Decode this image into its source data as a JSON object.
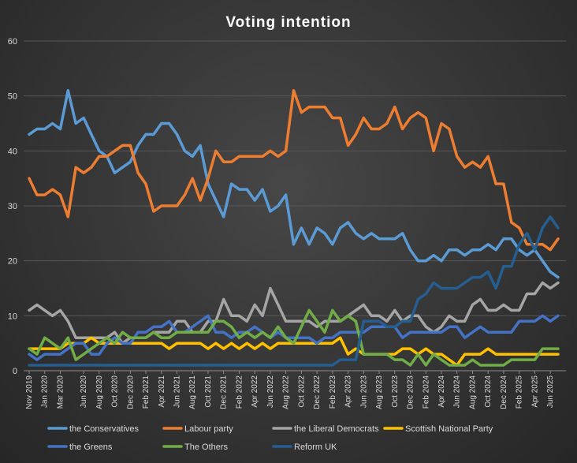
{
  "chart_data": {
    "type": "line",
    "title": "Voting  intention",
    "xlabel": "",
    "ylabel": "",
    "ylim": [
      0,
      60
    ],
    "yticks": [
      0,
      10,
      20,
      30,
      40,
      50,
      60
    ],
    "grid": true,
    "legend_position": "bottom",
    "x": [
      "Nov 2019",
      "Dec 2019",
      "Jan 2020",
      "Feb 2020",
      "Mar 2020",
      "Apr 2020",
      "May 2020",
      "Jun 2020",
      "Jul 2020",
      "Aug 2020",
      "Sep 2020",
      "Oct 2020",
      "Nov 2020",
      "Dec 2020",
      "Jan 2021",
      "Feb 2021",
      "Mar 2021",
      "Apr 2021",
      "May 2021",
      "Jun 2021",
      "Jul 2021",
      "Aug 2021",
      "Sep 2021",
      "Oct 2021",
      "Nov 2021",
      "Dec 2021",
      "Jan 2022",
      "Feb 2022",
      "Mar 2022",
      "Apr 2022",
      "May 2022",
      "Jun 2022",
      "Jul 2022",
      "Aug 2022",
      "Sep 2022",
      "Oct 2022",
      "Nov 2022",
      "Dec 2022",
      "Jan 2023",
      "Feb 2023",
      "Mar 2023",
      "Apr 2023",
      "May 2023",
      "Jun 2023",
      "Jul 2023",
      "Aug 2023",
      "Sep 2023",
      "Oct 2023",
      "Nov 2023",
      "Dec 2023",
      "Jan 2024",
      "Feb 2024",
      "Mar 2024",
      "Apr 2024",
      "May 2024",
      "Jun 2024",
      "Jul 2024",
      "Aug 2024",
      "Sep 2024",
      "Oct 2024",
      "Nov 2024",
      "Dec 2024",
      "Jan 2025",
      "Feb 2025",
      "Mar 2025",
      "Apr 2025",
      "May 2025",
      "Jun 2025",
      "Jul 2025"
    ],
    "xtick_labels": [
      "Nov 2019",
      "Jan 2020",
      "Mar 2020",
      "Jun 2020",
      "Aug 2020",
      "Oct 2020",
      "Dec 2020",
      "Feb 2021",
      "Apr 2021",
      "Jun 2021",
      "Aug 2021",
      "Oct 2021",
      "Dec 2021",
      "Feb 2022",
      "Apr 2022",
      "Jun 2022",
      "Aug 2022",
      "Oct 2022",
      "Dec 2022",
      "Feb 2023",
      "Apr 2023",
      "Jun 2023",
      "Aug 2023",
      "Oct 2023",
      "Dec 2023",
      "Feb 2024",
      "Apr 2024",
      "Jun 2024",
      "Aug 2024",
      "Oct 2024",
      "Dec 2024",
      "Feb 2025",
      "Apr 2025",
      "Jun 2025"
    ],
    "series": [
      {
        "name": "the Conservatives",
        "color": "#5b9bd5",
        "values": [
          43,
          44,
          44,
          45,
          44,
          51,
          45,
          46,
          43,
          40,
          39,
          36,
          37,
          38,
          41,
          43,
          43,
          45,
          45,
          43,
          40,
          39,
          41,
          34,
          31,
          28,
          34,
          33,
          33,
          31,
          33,
          29,
          30,
          32,
          23,
          26,
          23,
          26,
          25,
          23,
          26,
          27,
          25,
          24,
          25,
          24,
          24,
          24,
          25,
          22,
          20,
          20,
          21,
          20,
          22,
          22,
          21,
          22,
          22,
          23,
          22,
          24,
          24,
          22,
          21,
          22,
          20,
          18,
          17
        ]
      },
      {
        "name": "Labour party",
        "color": "#ed7d31",
        "values": [
          35,
          32,
          32,
          33,
          32,
          28,
          37,
          36,
          37,
          39,
          39,
          40,
          41,
          41,
          36,
          34,
          29,
          30,
          30,
          30,
          32,
          35,
          31,
          35,
          40,
          38,
          38,
          39,
          39,
          39,
          39,
          40,
          39,
          40,
          51,
          47,
          48,
          48,
          48,
          46,
          46,
          41,
          43,
          46,
          44,
          44,
          45,
          48,
          44,
          46,
          47,
          46,
          40,
          45,
          44,
          39,
          37,
          38,
          37,
          39,
          34,
          34,
          27,
          26,
          23,
          23,
          23,
          22,
          24
        ]
      },
      {
        "name": "the Liberal Democrats",
        "color": "#a5a5a5",
        "values": [
          11,
          12,
          11,
          10,
          11,
          9,
          6,
          6,
          6,
          6,
          6,
          7,
          5,
          6,
          6,
          6,
          7,
          7,
          7,
          9,
          9,
          7,
          7,
          9,
          9,
          13,
          10,
          10,
          9,
          12,
          10,
          15,
          12,
          9,
          9,
          9,
          9,
          8,
          9,
          9,
          9,
          10,
          11,
          12,
          10,
          10,
          9,
          11,
          9,
          10,
          10,
          8,
          7,
          8,
          10,
          9,
          9,
          12,
          13,
          11,
          11,
          12,
          11,
          11,
          14,
          14,
          16,
          15,
          16
        ]
      },
      {
        "name": "Scottish National Party",
        "color": "#ffc000",
        "values": [
          4,
          4,
          4,
          4,
          4,
          5,
          5,
          5,
          6,
          5,
          5,
          5,
          5,
          5,
          5,
          5,
          5,
          5,
          4,
          5,
          5,
          5,
          5,
          4,
          5,
          4,
          5,
          4,
          5,
          4,
          5,
          4,
          5,
          5,
          5,
          5,
          5,
          5,
          5,
          5,
          6,
          3,
          4,
          3,
          3,
          3,
          3,
          3,
          4,
          4,
          3,
          4,
          3,
          3,
          2,
          1,
          3,
          3,
          3,
          4,
          3,
          3,
          3,
          3,
          3,
          3,
          3,
          3,
          3
        ]
      },
      {
        "name": "the Greens",
        "color": "#4472c4",
        "values": [
          3,
          2,
          3,
          3,
          3,
          4,
          5,
          5,
          3,
          3,
          5,
          6,
          5,
          5,
          7,
          7,
          8,
          8,
          9,
          7,
          7,
          8,
          9,
          10,
          7,
          7,
          6,
          7,
          7,
          8,
          7,
          6,
          7,
          6,
          6,
          6,
          6,
          5,
          6,
          6,
          7,
          7,
          7,
          7,
          8,
          8,
          8,
          8,
          6,
          7,
          7,
          7,
          7,
          7,
          8,
          8,
          6,
          7,
          8,
          7,
          7,
          7,
          7,
          9,
          9,
          9,
          10,
          9,
          10
        ]
      },
      {
        "name": "The Others",
        "color": "#70ad47",
        "values": [
          4,
          3,
          6,
          5,
          4,
          6,
          2,
          3,
          4,
          5,
          6,
          5,
          7,
          6,
          6,
          6,
          7,
          6,
          6,
          7,
          7,
          7,
          7,
          7,
          9,
          9,
          8,
          6,
          7,
          6,
          7,
          6,
          8,
          6,
          5,
          8,
          11,
          9,
          7,
          11,
          9,
          10,
          9,
          3,
          3,
          3,
          3,
          2,
          2,
          1,
          3,
          1,
          3,
          2,
          1,
          1,
          1,
          2,
          1,
          1,
          1,
          1,
          2,
          2,
          2,
          2,
          4,
          4,
          4
        ]
      },
      {
        "name": "Reform UK",
        "color": "#255e91",
        "values": [
          1,
          1,
          1,
          1,
          1,
          1,
          1,
          1,
          1,
          1,
          1,
          1,
          1,
          1,
          1,
          1,
          1,
          1,
          1,
          1,
          1,
          1,
          1,
          1,
          1,
          1,
          1,
          1,
          1,
          1,
          1,
          1,
          1,
          1,
          1,
          1,
          1,
          1,
          1,
          1,
          2,
          2,
          2,
          9,
          9,
          9,
          8,
          8,
          9,
          9,
          13,
          14,
          16,
          15,
          15,
          15,
          16,
          17,
          17,
          18,
          15,
          19,
          19,
          23,
          25,
          22,
          26,
          28,
          26
        ]
      }
    ]
  }
}
